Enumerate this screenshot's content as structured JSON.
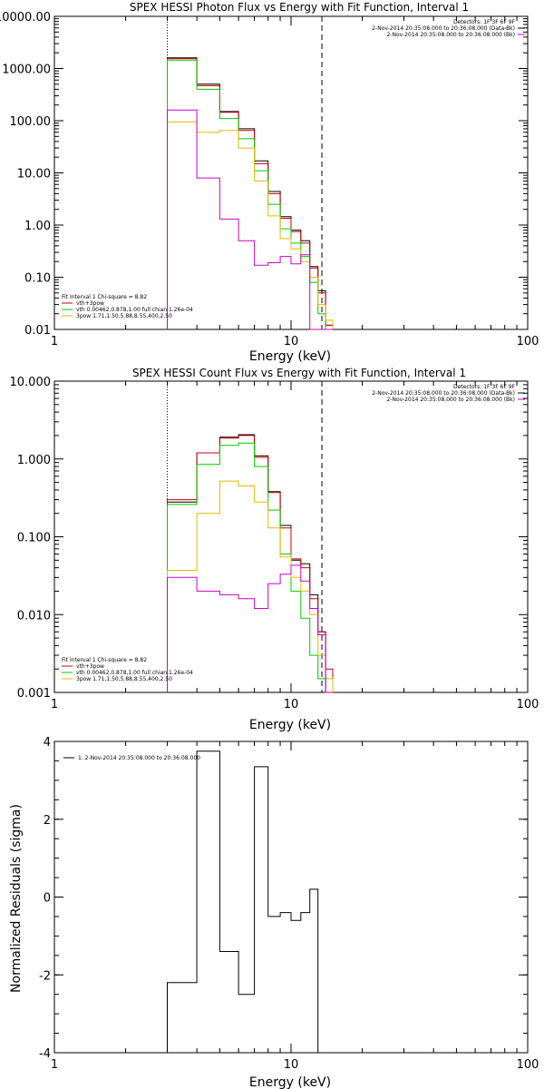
{
  "chart_data": [
    {
      "type": "line",
      "title": "SPEX HESSI Photon Flux vs Energy with Fit Function, Interval 1",
      "xlabel": "Energy (keV)",
      "xscale": "log",
      "yscale": "log",
      "xlim": [
        1,
        100
      ],
      "ylim": [
        0.01,
        10000
      ],
      "xticks": [
        {
          "v": 1,
          "label": "1"
        },
        {
          "v": 10,
          "label": "10"
        },
        {
          "v": 100,
          "label": "100"
        }
      ],
      "yticks": [
        {
          "v": 10000,
          "label": "10000.00"
        },
        {
          "v": 1000,
          "label": "1000.00"
        },
        {
          "v": 100,
          "label": "100.00"
        },
        {
          "v": 10,
          "label": "10.00"
        },
        {
          "v": 1,
          "label": "1.00"
        },
        {
          "v": 0.1,
          "label": "0.10"
        },
        {
          "v": 0.01,
          "label": "0.01"
        }
      ],
      "edges": [
        3.0,
        4.0,
        5.0,
        6.0,
        7.0,
        8.0,
        9.0,
        10.0,
        11.0,
        12.0,
        13.0,
        14.0,
        15.0
      ],
      "vlines": [
        {
          "x": 3.0,
          "style": "dotted"
        },
        {
          "x": 13.5,
          "style": "dashed"
        }
      ],
      "legend_tr": [
        {
          "text": "Detectors: 1F 3F 6F 9F",
          "color": null
        },
        {
          "text": "2-Nov-2014 20:35:08.000 to 20:36:08.000 (Data-Bk)",
          "color": "#000000"
        },
        {
          "text": "2-Nov-2014 20:35:08.000 to 20:36:08.000 (Bk)",
          "color": "#cc00cc"
        }
      ],
      "legend_bl": [
        {
          "text": "Fit Interval  1    Chi-square = 8.82",
          "color": null
        },
        {
          "text": "vth+3pow",
          "color": "#cc0000"
        },
        {
          "text": "vth 0.00462,0.878,1.00   full chian 1.26e-04",
          "color": "#00cc00"
        },
        {
          "text": "3pow 1.71,1.50,5.88,8.55,400,2.50",
          "color": "#e8b800"
        }
      ],
      "series": [
        {
          "name": "Data-Bk",
          "color": "#000000",
          "values": [
            1600,
            500,
            150,
            70,
            17,
            4.4,
            1.45,
            0.8,
            0.5,
            0.16,
            0.055,
            0.012
          ]
        },
        {
          "name": "vth+3pow",
          "color": "#cc0000",
          "values": [
            1550,
            470,
            145,
            65,
            15,
            4.0,
            1.35,
            0.75,
            0.45,
            0.15,
            0.05,
            0.012
          ]
        },
        {
          "name": "vth",
          "color": "#00cc00",
          "values": [
            1450,
            400,
            110,
            45,
            11,
            2.5,
            0.85,
            0.45,
            0.25,
            0.08,
            0.02,
            0.006
          ]
        },
        {
          "name": "3pow",
          "color": "#e8b800",
          "values": [
            95,
            60,
            65,
            30,
            7,
            1.5,
            0.55,
            0.35,
            0.2,
            0.1,
            0.03,
            0.015
          ]
        },
        {
          "name": "Bk",
          "color": "#cc00cc",
          "values": [
            160,
            8,
            1.3,
            0.5,
            0.17,
            0.19,
            0.25,
            0.18,
            0.27,
            0.0,
            0.0,
            0.0
          ]
        }
      ]
    },
    {
      "type": "line",
      "title": "SPEX HESSI Count Flux vs Energy with Fit Function, Interval 1",
      "xlabel": "Energy (keV)",
      "xscale": "log",
      "yscale": "log",
      "xlim": [
        1,
        100
      ],
      "ylim": [
        0.001,
        10
      ],
      "xticks": [
        {
          "v": 1,
          "label": "1"
        },
        {
          "v": 10,
          "label": "10"
        },
        {
          "v": 100,
          "label": "100"
        }
      ],
      "yticks": [
        {
          "v": 10,
          "label": "10.000"
        },
        {
          "v": 1,
          "label": "1.000"
        },
        {
          "v": 0.1,
          "label": "0.100"
        },
        {
          "v": 0.01,
          "label": "0.010"
        },
        {
          "v": 0.001,
          "label": "0.001"
        }
      ],
      "edges": [
        3.0,
        4.0,
        5.0,
        6.0,
        7.0,
        8.0,
        9.0,
        10.0,
        11.0,
        12.0,
        13.0,
        14.0,
        15.0
      ],
      "vlines": [
        {
          "x": 3.0,
          "style": "dotted"
        },
        {
          "x": 13.5,
          "style": "dashed"
        }
      ],
      "legend_tr": [
        {
          "text": "Detectors: 1F 3F 6F 9F",
          "color": null
        },
        {
          "text": "2-Nov-2014 20:35:08.000 to 20:36:08.000 (Data-Bk)",
          "color": "#000000"
        },
        {
          "text": "2-Nov-2014 20:35:08.000 to 20:36:08.000 (Bk)",
          "color": "#cc00cc"
        }
      ],
      "legend_bl": [
        {
          "text": "Fit Interval  1    Chi-square = 8.82",
          "color": null
        },
        {
          "text": "vth+3pow",
          "color": "#cc0000"
        },
        {
          "text": "vth 0.00462,0.878,1.00   full chian 1.26e-04",
          "color": "#00cc00"
        },
        {
          "text": "3pow 1.71,1.50,5.88,8.55,400,2.50",
          "color": "#e8b800"
        }
      ],
      "series": [
        {
          "name": "Data-Bk",
          "color": "#000000",
          "values": [
            0.28,
            1.2,
            1.9,
            2.05,
            1.1,
            0.38,
            0.14,
            0.05,
            0.045,
            0.018,
            0.006,
            0.0
          ]
        },
        {
          "name": "vth+3pow",
          "color": "#cc0000",
          "values": [
            0.3,
            1.2,
            1.85,
            2.0,
            1.05,
            0.37,
            0.13,
            0.052,
            0.04,
            0.016,
            0.006,
            0.002
          ]
        },
        {
          "name": "vth",
          "color": "#00cc00",
          "values": [
            0.26,
            0.85,
            1.5,
            1.6,
            0.8,
            0.22,
            0.06,
            0.02,
            0.009,
            0.003,
            0.0015,
            0.0
          ]
        },
        {
          "name": "3pow",
          "color": "#e8b800",
          "values": [
            0.037,
            0.2,
            0.52,
            0.45,
            0.28,
            0.13,
            0.055,
            0.03,
            0.02,
            0.01,
            0.003,
            0.0015
          ]
        },
        {
          "name": "Bk",
          "color": "#cc00cc",
          "values": [
            0.03,
            0.02,
            0.018,
            0.016,
            0.012,
            0.025,
            0.033,
            0.043,
            0.027,
            0.012,
            0.0055,
            0.0
          ]
        }
      ]
    },
    {
      "type": "line",
      "title": "",
      "xlabel": "Energy (keV)",
      "ylabel": "Normalized Residuals (sigma)",
      "xscale": "log",
      "yscale": "linear",
      "xlim": [
        1,
        100
      ],
      "ylim": [
        -4,
        4
      ],
      "xticks": [
        {
          "v": 1,
          "label": "1"
        },
        {
          "v": 10,
          "label": "10"
        },
        {
          "v": 100,
          "label": "100"
        }
      ],
      "yticks": [
        {
          "v": 4,
          "label": "4"
        },
        {
          "v": 2,
          "label": "2"
        },
        {
          "v": 0,
          "label": "0"
        },
        {
          "v": -2,
          "label": "-2"
        },
        {
          "v": -4,
          "label": "-4"
        }
      ],
      "edges": [
        3.0,
        4.0,
        5.0,
        6.0,
        7.0,
        8.0,
        9.0,
        10.0,
        11.0,
        12.0,
        13.0,
        14.0
      ],
      "legend_tl": [
        {
          "text": "1.  2-Nov-2014 20:35:08.000 to 20:36:08.000",
          "color": "#000000"
        }
      ],
      "series": [
        {
          "name": "Residuals",
          "color": "#000000",
          "values": [
            -2.2,
            3.75,
            -1.4,
            -2.5,
            3.35,
            -0.5,
            -0.4,
            -0.6,
            -0.4,
            0.2,
            -4
          ]
        }
      ]
    }
  ]
}
